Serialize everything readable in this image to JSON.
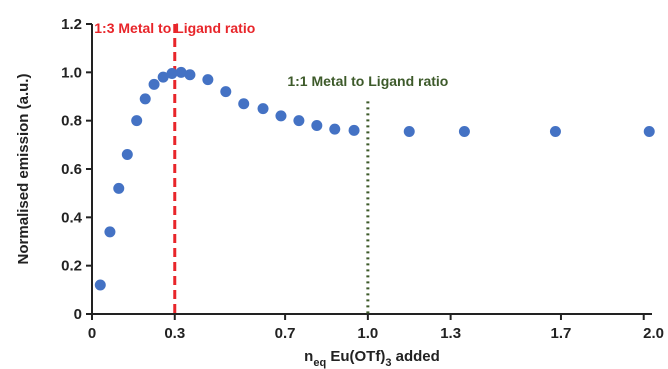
{
  "chart_data": {
    "type": "scatter",
    "title": "",
    "xlabel": {
      "main": "n",
      "sub": "eq",
      "rest": " Eu(OTf)",
      "sub2": "3",
      "tail": " added"
    },
    "ylabel": "Normalised emission (a.u.)",
    "xlim": [
      0,
      2.03
    ],
    "ylim": [
      0,
      1.2
    ],
    "x_ticks": [
      0,
      0.3,
      0.7,
      1.0,
      1.3,
      1.7,
      2.0
    ],
    "x_tick_labels": [
      "0",
      "0.3",
      "0.7",
      "1.0",
      "1.3",
      "1.7",
      "2.0"
    ],
    "y_ticks": [
      0,
      0.2,
      0.4,
      0.6,
      0.8,
      1.0,
      1.2
    ],
    "y_tick_labels": [
      "0",
      "0.2",
      "0.4",
      "0.6",
      "0.8",
      "1.0",
      "1.2"
    ],
    "grid": false,
    "series": [
      {
        "color": "#4472c4",
        "x": [
          0.03,
          0.065,
          0.097,
          0.128,
          0.162,
          0.193,
          0.225,
          0.258,
          0.29,
          0.323,
          0.355,
          0.42,
          0.485,
          0.55,
          0.62,
          0.685,
          0.75,
          0.815,
          0.88,
          0.95,
          1.15,
          1.35,
          1.68,
          2.02
        ],
        "y": [
          0.12,
          0.34,
          0.52,
          0.66,
          0.8,
          0.89,
          0.95,
          0.98,
          0.995,
          1.0,
          0.99,
          0.97,
          0.92,
          0.87,
          0.85,
          0.82,
          0.8,
          0.78,
          0.765,
          0.76,
          0.755,
          0.755,
          0.755,
          0.755
        ]
      }
    ],
    "reference_lines": [
      {
        "x": 0.3,
        "label": "1:3 Metal to Ligand ratio",
        "color": "#e8252a",
        "style": "dashed"
      },
      {
        "x": 1.0,
        "label": "1:1 Metal to Ligand ratio",
        "color": "#3d5a2a",
        "style": "dotted",
        "y_top": 0.88
      }
    ]
  }
}
